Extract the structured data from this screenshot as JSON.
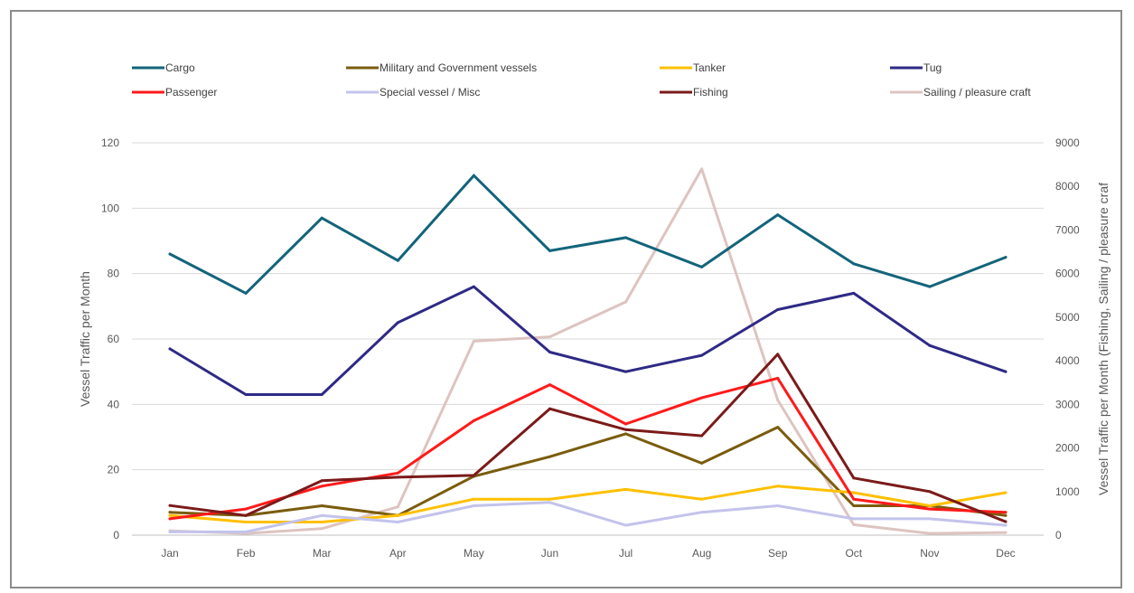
{
  "chart_data": {
    "type": "line",
    "categories": [
      "Jan",
      "Feb",
      "Mar",
      "Apr",
      "May",
      "Jun",
      "Jul",
      "Aug",
      "Sep",
      "Oct",
      "Nov",
      "Dec"
    ],
    "ylabel": "Vessel Traffic per Month",
    "y2label": "Vessel Traffic per Month (Fishing, Sailing / pleasure craf",
    "ylim": [
      0,
      120
    ],
    "y2lim": [
      0,
      9000
    ],
    "yticks": [
      0,
      20,
      40,
      60,
      80,
      100,
      120
    ],
    "y2ticks": [
      0,
      1000,
      2000,
      3000,
      4000,
      5000,
      6000,
      7000,
      8000,
      9000
    ],
    "grid": true,
    "legend_position": "top",
    "series": [
      {
        "name": "Cargo",
        "axis": "left",
        "color": "#13647a",
        "values": [
          86,
          74,
          97,
          84,
          110,
          87,
          91,
          82,
          98,
          83,
          76,
          85
        ]
      },
      {
        "name": "Military and Government vessels",
        "axis": "left",
        "color": "#7a5c0d",
        "values": [
          7,
          6,
          9,
          6,
          18,
          24,
          31,
          22,
          33,
          9,
          9,
          6
        ]
      },
      {
        "name": "Tanker",
        "axis": "left",
        "color": "#ffc000",
        "values": [
          6,
          4,
          4,
          6,
          11,
          11,
          14,
          11,
          15,
          13,
          9,
          13
        ]
      },
      {
        "name": "Tug",
        "axis": "left",
        "color": "#2e2a85",
        "values": [
          57,
          43,
          43,
          65,
          76,
          56,
          50,
          55,
          69,
          74,
          58,
          50
        ]
      },
      {
        "name": "Passenger",
        "axis": "left",
        "color": "#ff1a1a",
        "values": [
          5,
          8,
          15,
          19,
          35,
          46,
          34,
          42,
          48,
          11,
          8,
          7
        ]
      },
      {
        "name": "Special vessel / Misc",
        "axis": "left",
        "color": "#c3c3ec",
        "values": [
          1,
          1,
          6,
          4,
          9,
          10,
          3,
          7,
          9,
          5,
          5,
          3
        ]
      },
      {
        "name": "Fishing",
        "axis": "right",
        "color": "#7b1a1a",
        "values": [
          680,
          450,
          1250,
          1330,
          1370,
          2900,
          2420,
          2280,
          4150,
          1310,
          1000,
          310
        ]
      },
      {
        "name": "Sailing / pleasure craft",
        "axis": "right",
        "color": "#ddc4c0",
        "values": [
          100,
          40,
          150,
          650,
          4450,
          4550,
          5350,
          8400,
          3100,
          240,
          40,
          60
        ]
      }
    ]
  }
}
